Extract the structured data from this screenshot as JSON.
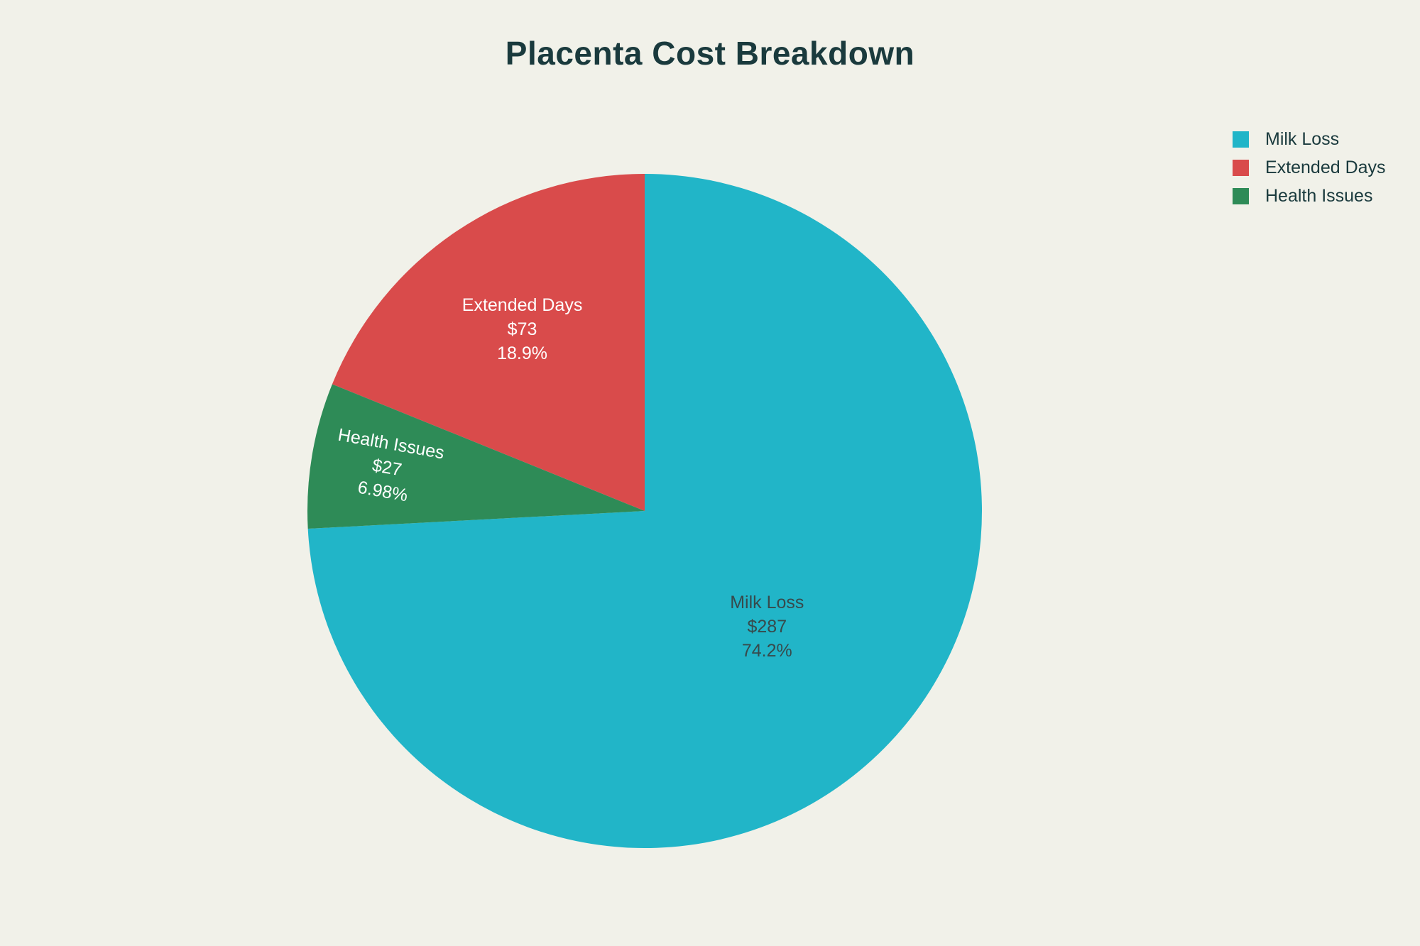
{
  "page": {
    "background": "#f1f1e9"
  },
  "title": {
    "text": "Placenta Cost Breakdown",
    "color": "#1a3a3d"
  },
  "legend": {
    "items": [
      {
        "label": "Milk Loss",
        "color": "#21b5c8"
      },
      {
        "label": "Extended Days",
        "color": "#d94b4b"
      },
      {
        "label": "Health Issues",
        "color": "#2e8b57"
      }
    ],
    "text_color": "#1a3a3d"
  },
  "chart_data": {
    "type": "pie",
    "title": "Placenta Cost Breakdown",
    "currency": "$",
    "slices": [
      {
        "name": "Milk Loss",
        "value": 287,
        "value_label": "$287",
        "pct_label": "74.2%",
        "pct": 74.2,
        "color": "#21b5c8",
        "text_color": "#374a4c"
      },
      {
        "name": "Extended Days",
        "value": 73,
        "value_label": "$73",
        "pct_label": "18.9%",
        "pct": 18.9,
        "color": "#d94b4b",
        "text_color": "#ffffff"
      },
      {
        "name": "Health Issues",
        "value": 27,
        "value_label": "$27",
        "pct_label": "6.98%",
        "pct": 6.98,
        "color": "#2e8b57",
        "text_color": "#ffffff"
      }
    ],
    "legend_position": "top-right",
    "labels_inside": true
  }
}
